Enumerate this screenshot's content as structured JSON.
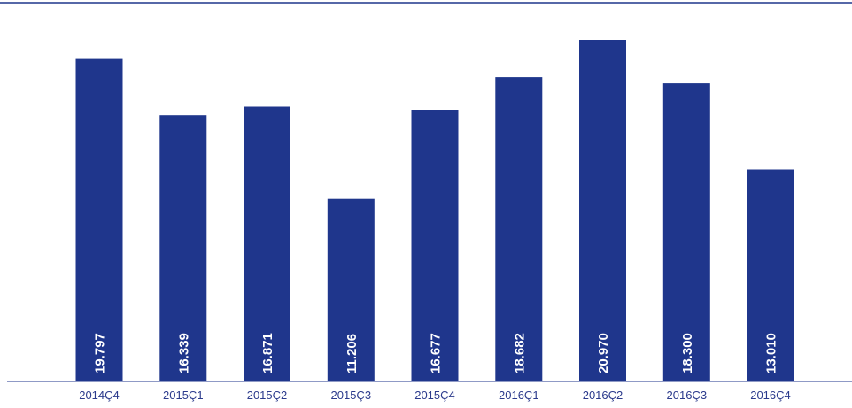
{
  "chart_data": {
    "type": "bar",
    "categories": [
      "2014Ç4",
      "2015Ç1",
      "2015Ç2",
      "2015Ç3",
      "2015Ç4",
      "2016Ç1",
      "2016Ç2",
      "2016Ç3",
      "2016Ç4"
    ],
    "values": [
      19797,
      16339,
      16871,
      11206,
      16677,
      18682,
      20970,
      18300,
      13010
    ],
    "value_labels": [
      "19.797",
      "16.339",
      "16.871",
      "11.206",
      "16.677",
      "18.682",
      "20.970",
      "18.300",
      "13.010"
    ],
    "title": "",
    "xlabel": "",
    "ylabel": "",
    "ylim": [
      0,
      22000
    ],
    "grid": false,
    "legend": "none",
    "colors": {
      "bar": "#1f368c",
      "axis": "#1f368c",
      "tick_text": "#2b3a8c",
      "value_text": "#ffffff"
    }
  }
}
